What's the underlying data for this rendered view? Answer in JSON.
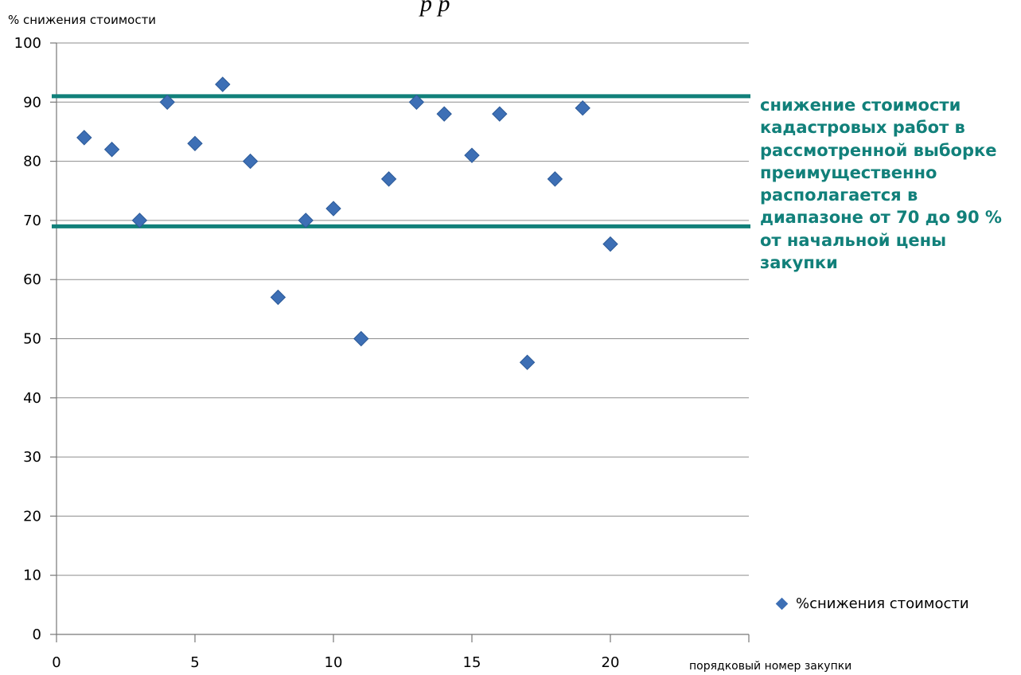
{
  "page": {
    "top_fragment": "р    р"
  },
  "chart_data": {
    "type": "scatter",
    "title": "",
    "xlabel": "порядковый номер закупки",
    "ylabel": "% снижения стоимости",
    "xlim": [
      0,
      25
    ],
    "ylim": [
      0,
      100
    ],
    "x_ticks": [
      0,
      5,
      10,
      15,
      20
    ],
    "y_ticks": [
      0,
      10,
      20,
      30,
      40,
      50,
      60,
      70,
      80,
      90,
      100
    ],
    "grid": true,
    "legend_position": "bottom-right",
    "series": [
      {
        "name": "%снижения стоимости",
        "color": "#3d6fb5",
        "marker": "diamond",
        "x": [
          1,
          2,
          3,
          4,
          5,
          6,
          7,
          8,
          9,
          10,
          11,
          12,
          13,
          14,
          15,
          16,
          17,
          18,
          19,
          20
        ],
        "y": [
          84,
          82,
          70,
          90,
          83,
          93,
          80,
          57,
          70,
          72,
          50,
          77,
          90,
          88,
          81,
          88,
          46,
          77,
          89,
          66
        ]
      }
    ],
    "reference_lines": [
      {
        "y": 91,
        "color": "#11807a"
      },
      {
        "y": 69,
        "color": "#11807a"
      }
    ],
    "annotation": {
      "color": "#11807a",
      "lines": [
        "снижение стоимости",
        "кадастровых работ в",
        "рассмотренной выборке",
        "преимущественно",
        "располагается в",
        "диапазоне от 70 до 90 %",
        "от начальной цены",
        "закупки"
      ]
    }
  }
}
